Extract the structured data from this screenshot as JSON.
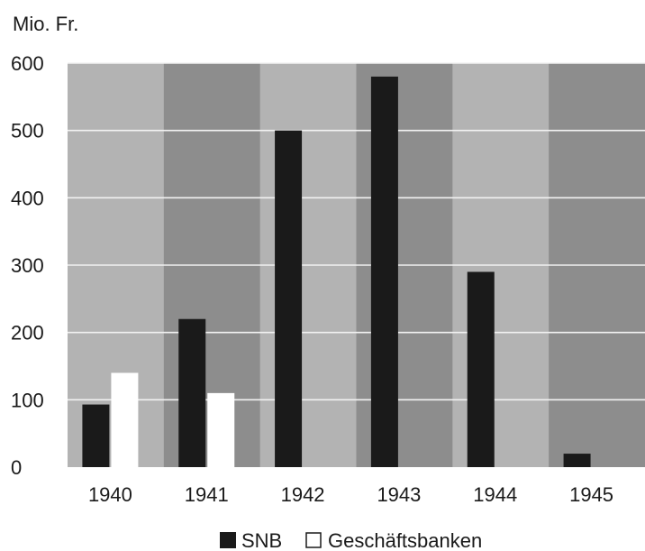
{
  "chart_data": {
    "type": "bar",
    "ylabel": "Mio. Fr.",
    "categories": [
      "1940",
      "1941",
      "1942",
      "1943",
      "1944",
      "1945"
    ],
    "series": [
      {
        "name": "SNB",
        "values": [
          93,
          220,
          500,
          580,
          290,
          20
        ],
        "color": "#1a1a1a"
      },
      {
        "name": "Geschäftsbanken",
        "values": [
          140,
          110,
          0,
          0,
          0,
          0
        ],
        "color": "#ffffff"
      }
    ],
    "ylim": [
      0,
      600
    ],
    "yticks": [
      "0",
      "100",
      "200",
      "300",
      "400",
      "500",
      "600"
    ],
    "ytick_values": [
      0,
      100,
      200,
      300,
      400,
      500,
      600
    ],
    "grid": true,
    "legend": "bottom",
    "band_colors": [
      "#b3b3b3",
      "#8d8d8d"
    ]
  }
}
